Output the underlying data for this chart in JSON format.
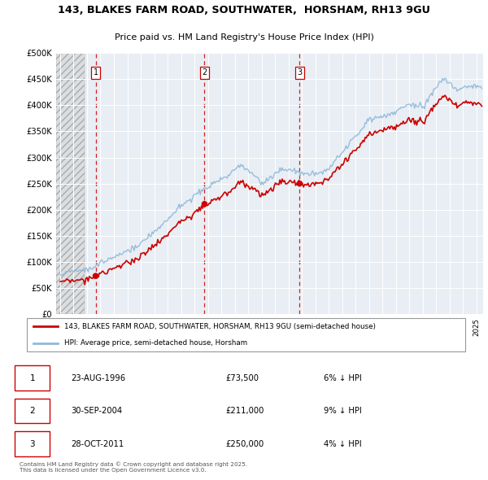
{
  "title": "143, BLAKES FARM ROAD, SOUTHWATER,  HORSHAM, RH13 9GU",
  "subtitle": "Price paid vs. HM Land Registry's House Price Index (HPI)",
  "legend_label_red": "143, BLAKES FARM ROAD, SOUTHWATER, HORSHAM, RH13 9GU (semi-detached house)",
  "legend_label_blue": "HPI: Average price, semi-detached house, Horsham",
  "footer": "Contains HM Land Registry data © Crown copyright and database right 2025.\nThis data is licensed under the Open Government Licence v3.0.",
  "transactions": [
    {
      "num": 1,
      "date": "23-AUG-1996",
      "price": "£73,500",
      "pct": "6% ↓ HPI",
      "year": 1996.64
    },
    {
      "num": 2,
      "date": "30-SEP-2004",
      "price": "£211,000",
      "pct": "9% ↓ HPI",
      "year": 2004.75
    },
    {
      "num": 3,
      "date": "28-OCT-2011",
      "price": "£250,000",
      "pct": "4% ↓ HPI",
      "year": 2011.83
    }
  ],
  "sale_prices": [
    73500,
    211000,
    250000
  ],
  "sale_years": [
    1996.64,
    2004.75,
    2011.83
  ],
  "red_color": "#cc0000",
  "blue_color": "#90b8d8",
  "hatch_color": "#c8c8c8",
  "background_color": "#e8eef4",
  "grid_color": "#ffffff",
  "ylim": [
    0,
    500000
  ],
  "xlim_start": 1993.7,
  "xlim_end": 2025.5
}
